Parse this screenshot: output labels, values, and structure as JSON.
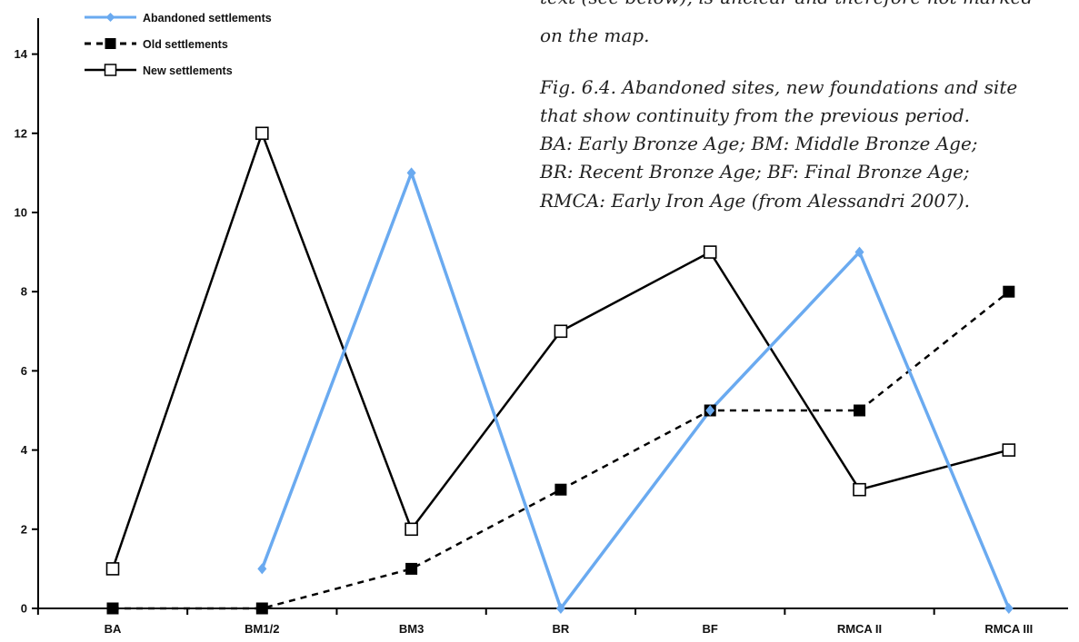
{
  "chart_data": {
    "type": "line",
    "categories": [
      "BA",
      "BM1/2",
      "BM3",
      "BR",
      "BF",
      "RMCA II",
      "RMCA III"
    ],
    "series": [
      {
        "name": "Abandoned settlements",
        "values": [
          null,
          1,
          11,
          0,
          5,
          9,
          0
        ],
        "color": "#6aaaf0",
        "line_style": "solid",
        "marker": "diamond"
      },
      {
        "name": "Old settlements",
        "values": [
          0,
          0,
          1,
          3,
          5,
          5,
          8
        ],
        "color": "#000000",
        "line_style": "dashed",
        "marker": "filled-square"
      },
      {
        "name": "New settlements",
        "values": [
          1,
          12,
          2,
          7,
          9,
          3,
          4
        ],
        "color": "#000000",
        "line_style": "solid",
        "marker": "open-square"
      }
    ],
    "y_ticks": [
      0,
      2,
      4,
      6,
      8,
      10,
      12,
      14
    ],
    "ylim": [
      0,
      15
    ],
    "grid": false,
    "legend_position": "top-left"
  },
  "caption": {
    "partial_top_lines": [
      "text (see below), is unclear and therefore not marked",
      "on the map."
    ],
    "figure_lines": [
      "Fig. 6.4. Abandoned sites, new foundations and site",
      "that show continuity from the previous period.",
      "BA: Early Bronze Age; BM: Middle Bronze Age;",
      "BR: Recent Bronze Age; BF: Final Bronze Age;",
      "RMCA: Early Iron Age (from Alessandri 2007)."
    ]
  }
}
